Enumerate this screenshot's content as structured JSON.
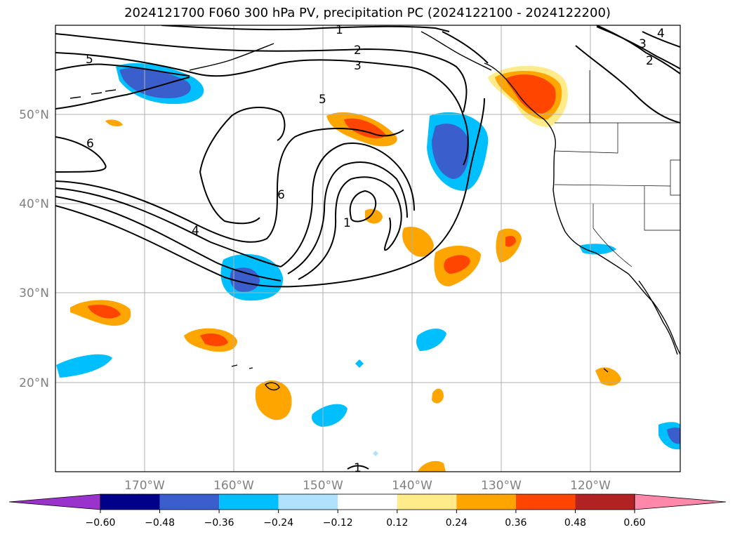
{
  "title": "2024121700 F060 300 hPa PV, precipitation PC (2024122100 - 2024122200)",
  "lat_labels": [
    "50°N",
    "40°N",
    "30°N",
    "20°N"
  ],
  "lon_labels": [
    "170°W",
    "160°W",
    "150°W",
    "140°W",
    "130°W",
    "120°W"
  ],
  "colorbar": {
    "extend": "both",
    "ticks": [
      "−0.60",
      "−0.48",
      "−0.36",
      "−0.24",
      "−0.12",
      "0.12",
      "0.24",
      "0.36",
      "0.48",
      "0.60"
    ],
    "colors": [
      "#9933cc",
      "#00008b",
      "#3a5fcd",
      "#00bfff",
      "#b0e2ff",
      "#ffffff",
      "#ffeb8a",
      "#ffa500",
      "#ff4500",
      "#b22222",
      "#ff88aa"
    ]
  },
  "contour_labels": [
    "1",
    "2",
    "3",
    "4",
    "5",
    "5",
    "6",
    "6",
    "4",
    "3",
    "2",
    "1",
    "1"
  ],
  "colors": {
    "contour": "#000000",
    "grid": "#b0b0b0",
    "coast": "#000000"
  }
}
